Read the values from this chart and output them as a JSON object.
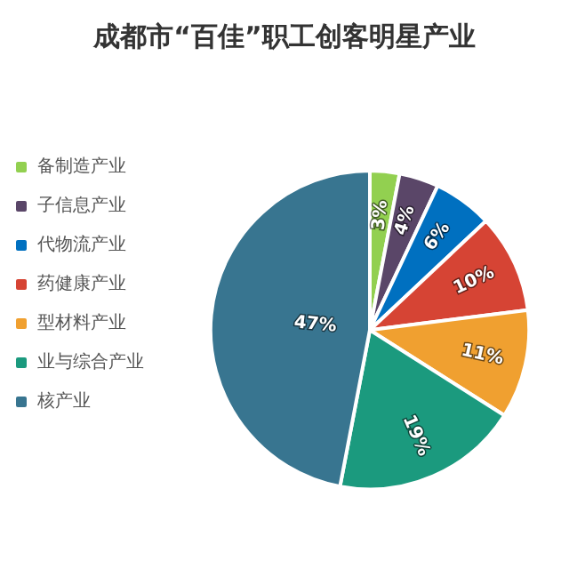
{
  "chart_data": {
    "type": "pie",
    "title": "成都市“百佳”职工创客明星产业",
    "categories": [
      "备制造产业",
      "子信息产业",
      "代物流产业",
      "药健康产业",
      "型材料产业",
      "业与综合产业",
      "核产业"
    ],
    "values": [
      3,
      4,
      6,
      10,
      11,
      19,
      47
    ],
    "colors": [
      "#92d050",
      "#5a4668",
      "#0070c0",
      "#d64434",
      "#f0a030",
      "#1b9a7e",
      "#387590"
    ],
    "value_labels": [
      "3%",
      "4%",
      "6%",
      "10%",
      "11%",
      "19%",
      "47%"
    ],
    "legend": "left"
  }
}
